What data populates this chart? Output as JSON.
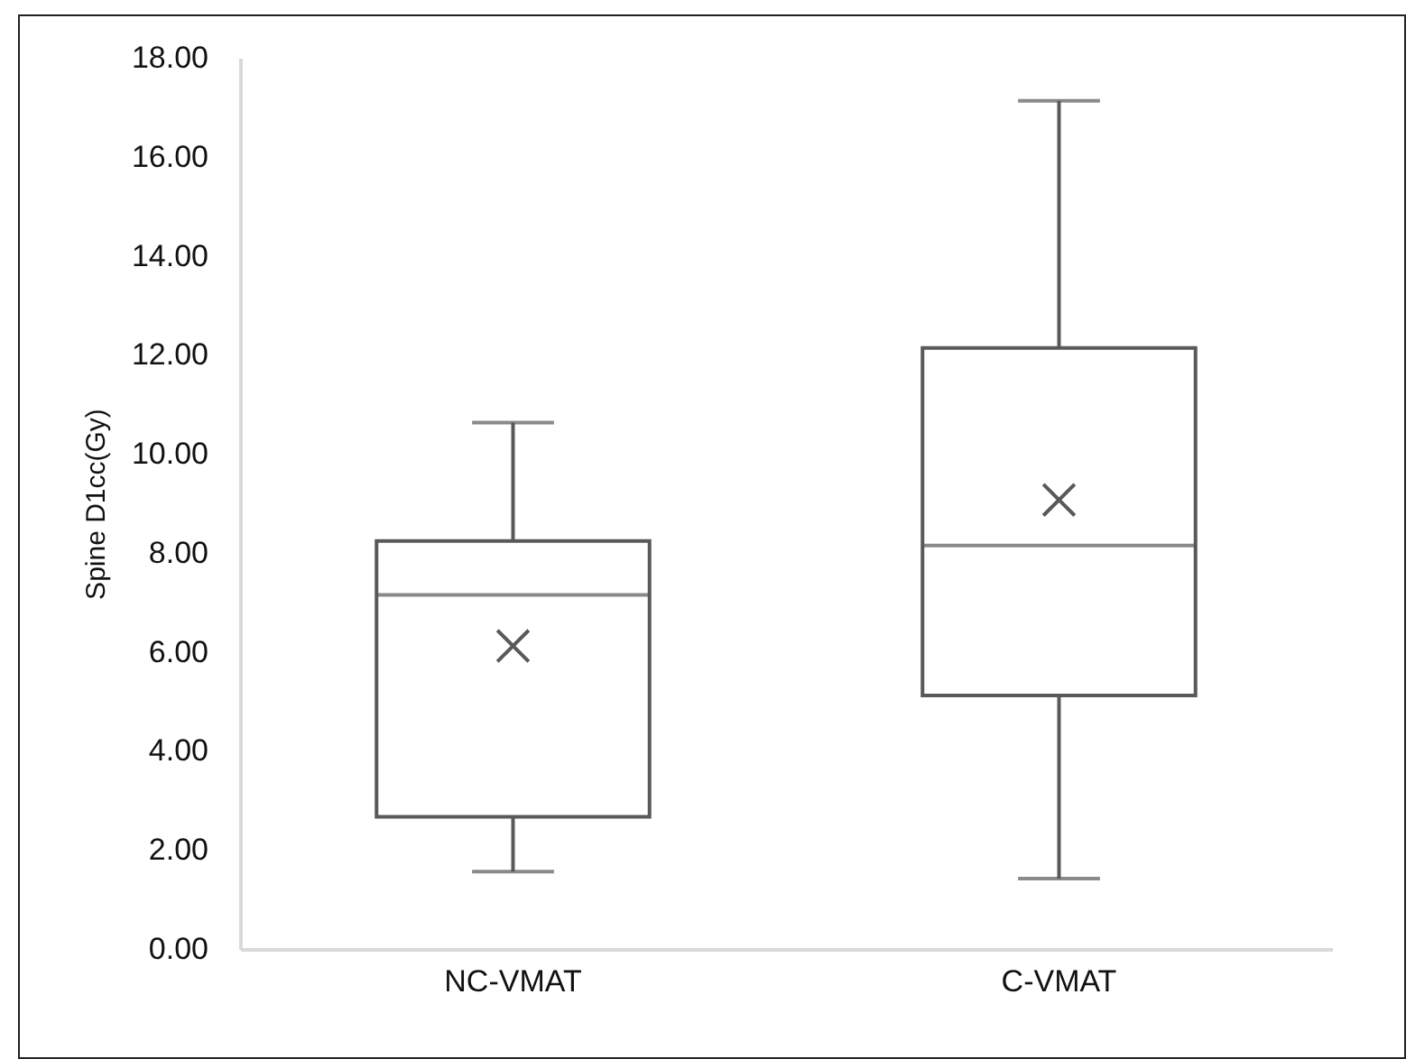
{
  "chart_data": {
    "type": "box",
    "ylabel": "Spine D1cc(Gy)",
    "categories": [
      "NC-VMAT",
      "C-VMAT"
    ],
    "color": "#595959",
    "boxes": [
      {
        "low": 1.56,
        "q1": 2.67,
        "median": 7.15,
        "q3": 8.24,
        "high": 10.63,
        "mean": 6.12
      },
      {
        "low": 1.42,
        "q1": 5.12,
        "median": 8.15,
        "q3": 12.14,
        "high": 17.13,
        "mean": 9.07
      }
    ],
    "ylim": [
      0,
      18
    ],
    "yticks": [
      {
        "value": 0,
        "label": "0.00"
      },
      {
        "value": 2,
        "label": "2.00"
      },
      {
        "value": 4,
        "label": "4.00"
      },
      {
        "value": 6,
        "label": "6.00"
      },
      {
        "value": 8,
        "label": "8.00"
      },
      {
        "value": 10,
        "label": "10.00"
      },
      {
        "value": 12,
        "label": "12.00"
      },
      {
        "value": 14,
        "label": "14.00"
      },
      {
        "value": 16,
        "label": "16.00"
      },
      {
        "value": 18,
        "label": "18.00"
      }
    ],
    "grid": false
  }
}
